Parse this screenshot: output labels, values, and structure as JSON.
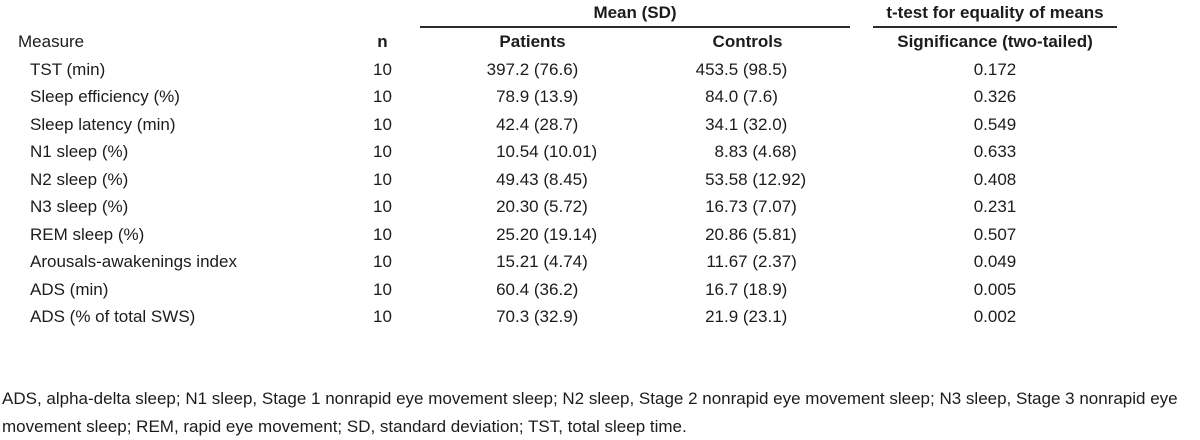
{
  "table": {
    "spanners": {
      "mean_sd": "Mean (SD)",
      "t_test": "t-test for equality of means"
    },
    "columns": {
      "measure": "Measure",
      "n": "n",
      "patients": "Patients",
      "controls": "Controls",
      "significance": "Significance (two-tailed)"
    },
    "rows": [
      {
        "measure": "TST (min)",
        "n": "10",
        "patients": "397.2 (76.6)",
        "controls": "453.5 (98.5)",
        "significance": "0.172"
      },
      {
        "measure": "Sleep efficiency (%)",
        "n": "10",
        "patients": "78.9 (13.9)",
        "controls": "84.0 (7.6)",
        "significance": "0.326"
      },
      {
        "measure": "Sleep latency (min)",
        "n": "10",
        "patients": "42.4 (28.7)",
        "controls": "34.1 (32.0)",
        "significance": "0.549"
      },
      {
        "measure": "N1 sleep (%)",
        "n": "10",
        "patients": "10.54 (10.01)",
        "controls": "8.83 (4.68)",
        "significance": "0.633"
      },
      {
        "measure": "N2 sleep (%)",
        "n": "10",
        "patients": "49.43 (8.45)",
        "controls": "53.58 (12.92)",
        "significance": "0.408"
      },
      {
        "measure": "N3 sleep (%)",
        "n": "10",
        "patients": "20.30 (5.72)",
        "controls": "16.73 (7.07)",
        "significance": "0.231"
      },
      {
        "measure": "REM sleep (%)",
        "n": "10",
        "patients": "25.20 (19.14)",
        "controls": "20.86 (5.81)",
        "significance": "0.507"
      },
      {
        "measure": "Arousals-awakenings index",
        "n": "10",
        "patients": "15.21 (4.74)",
        "controls": "11.67 (2.37)",
        "significance": "0.049"
      },
      {
        "measure": "ADS (min)",
        "n": "10",
        "patients": "60.4 (36.2)",
        "controls": "16.7 (18.9)",
        "significance": "0.005"
      },
      {
        "measure": "ADS (% of total SWS)",
        "n": "10",
        "patients": "70.3 (32.9)",
        "controls": "21.9 (23.1)",
        "significance": "0.002"
      }
    ]
  },
  "footnote": "ADS, alpha-delta sleep; N1 sleep, Stage 1 nonrapid eye movement sleep; N2 sleep, Stage 2 nonrapid eye movement sleep; N3 sleep, Stage 3 nonrapid eye movement sleep; REM, rapid eye movement; SD, standard deviation; TST, total sleep time.",
  "chart_data": {
    "type": "table",
    "title": "Mean (SD) sleep measures with t-test for equality of means",
    "columns": [
      "Measure",
      "n",
      "Patients",
      "Controls",
      "Significance (two-tailed)"
    ],
    "rows": [
      [
        "TST (min)",
        10,
        "397.2 (76.6)",
        "453.5 (98.5)",
        0.172
      ],
      [
        "Sleep efficiency (%)",
        10,
        "78.9 (13.9)",
        "84.0 (7.6)",
        0.326
      ],
      [
        "Sleep latency (min)",
        10,
        "42.4 (28.7)",
        "34.1 (32.0)",
        0.549
      ],
      [
        "N1 sleep (%)",
        10,
        "10.54 (10.01)",
        "8.83 (4.68)",
        0.633
      ],
      [
        "N2 sleep (%)",
        10,
        "49.43 (8.45)",
        "53.58 (12.92)",
        0.408
      ],
      [
        "N3 sleep (%)",
        10,
        "20.30 (5.72)",
        "16.73 (7.07)",
        0.231
      ],
      [
        "REM sleep (%)",
        10,
        "25.20 (19.14)",
        "20.86 (5.81)",
        0.507
      ],
      [
        "Arousals-awakenings index",
        10,
        "15.21 (4.74)",
        "11.67 (2.37)",
        0.049
      ],
      [
        "ADS (min)",
        10,
        "60.4 (36.2)",
        "16.7 (18.9)",
        0.005
      ],
      [
        "ADS (% of total SWS)",
        10,
        "70.3 (32.9)",
        "21.9 (23.1)",
        0.002
      ]
    ]
  }
}
